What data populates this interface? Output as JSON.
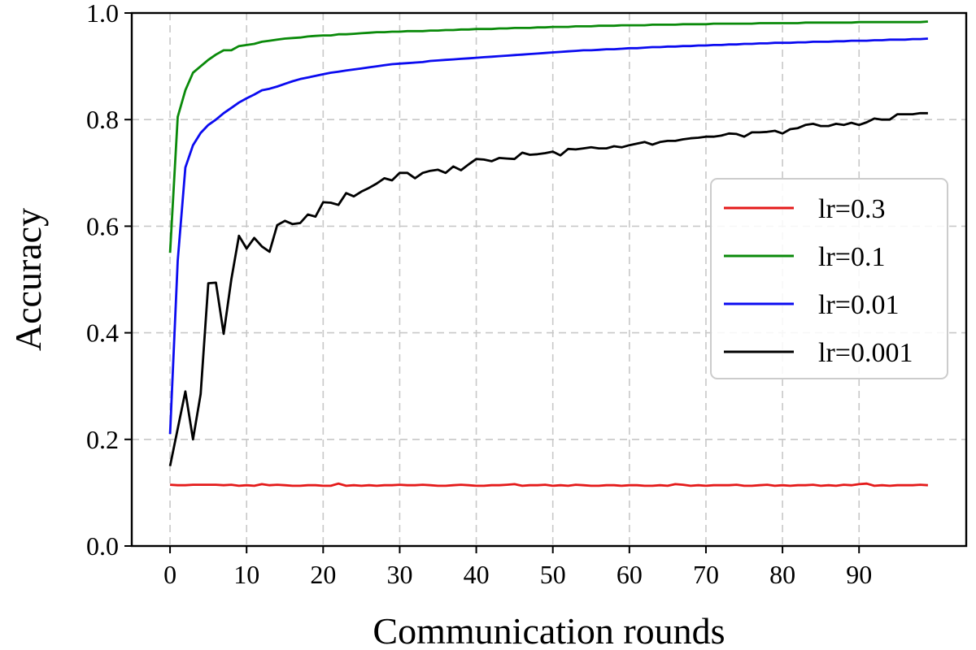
{
  "chart_data": {
    "type": "line",
    "title": "",
    "xlabel": "Communication rounds",
    "ylabel": "Accuracy",
    "xlim": [
      -5,
      104
    ],
    "ylim": [
      0.0,
      1.0
    ],
    "xticks": [
      0,
      10,
      20,
      30,
      40,
      50,
      60,
      70,
      80,
      90
    ],
    "xtick_labels": [
      "0",
      "10",
      "20",
      "30",
      "40",
      "50",
      "60",
      "70",
      "80",
      "90"
    ],
    "yticks": [
      0.0,
      0.2,
      0.4,
      0.6,
      0.8,
      1.0
    ],
    "ytick_labels": [
      "0.0",
      "0.2",
      "0.4",
      "0.6",
      "0.8",
      "1.0"
    ],
    "grid": true,
    "legend_position": "center-right",
    "x": [
      0,
      1,
      2,
      3,
      4,
      5,
      6,
      7,
      8,
      9,
      10,
      11,
      12,
      13,
      14,
      15,
      16,
      17,
      18,
      19,
      20,
      21,
      22,
      23,
      24,
      25,
      26,
      27,
      28,
      29,
      30,
      31,
      32,
      33,
      34,
      35,
      36,
      37,
      38,
      39,
      40,
      41,
      42,
      43,
      44,
      45,
      46,
      47,
      48,
      49,
      50,
      51,
      52,
      53,
      54,
      55,
      56,
      57,
      58,
      59,
      60,
      61,
      62,
      63,
      64,
      65,
      66,
      67,
      68,
      69,
      70,
      71,
      72,
      73,
      74,
      75,
      76,
      77,
      78,
      79,
      80,
      81,
      82,
      83,
      84,
      85,
      86,
      87,
      88,
      89,
      90,
      91,
      92,
      93,
      94,
      95,
      96,
      97,
      98,
      99
    ],
    "series": [
      {
        "name": "lr=0.3",
        "color": "#e41a1a",
        "values": [
          0.115,
          0.114,
          0.114,
          0.115,
          0.115,
          0.115,
          0.115,
          0.114,
          0.115,
          0.113,
          0.114,
          0.113,
          0.116,
          0.114,
          0.115,
          0.114,
          0.113,
          0.113,
          0.114,
          0.114,
          0.113,
          0.113,
          0.117,
          0.113,
          0.114,
          0.113,
          0.114,
          0.113,
          0.114,
          0.114,
          0.115,
          0.114,
          0.114,
          0.115,
          0.114,
          0.113,
          0.113,
          0.114,
          0.115,
          0.114,
          0.113,
          0.113,
          0.114,
          0.114,
          0.115,
          0.116,
          0.113,
          0.114,
          0.114,
          0.115,
          0.113,
          0.114,
          0.113,
          0.115,
          0.114,
          0.113,
          0.113,
          0.114,
          0.114,
          0.113,
          0.114,
          0.114,
          0.113,
          0.113,
          0.114,
          0.113,
          0.116,
          0.115,
          0.113,
          0.114,
          0.113,
          0.114,
          0.114,
          0.114,
          0.115,
          0.113,
          0.113,
          0.114,
          0.115,
          0.113,
          0.114,
          0.113,
          0.114,
          0.114,
          0.115,
          0.113,
          0.114,
          0.113,
          0.115,
          0.114,
          0.116,
          0.117,
          0.113,
          0.114,
          0.113,
          0.114,
          0.114,
          0.114,
          0.115,
          0.114
        ]
      },
      {
        "name": "lr=0.1",
        "color": "#0a8a0a",
        "values": [
          0.55,
          0.805,
          0.855,
          0.888,
          0.9,
          0.912,
          0.922,
          0.93,
          0.93,
          0.938,
          0.94,
          0.942,
          0.946,
          0.948,
          0.95,
          0.952,
          0.953,
          0.954,
          0.956,
          0.957,
          0.958,
          0.958,
          0.96,
          0.96,
          0.961,
          0.962,
          0.963,
          0.964,
          0.964,
          0.965,
          0.965,
          0.966,
          0.966,
          0.966,
          0.967,
          0.967,
          0.968,
          0.968,
          0.969,
          0.969,
          0.97,
          0.97,
          0.97,
          0.971,
          0.971,
          0.972,
          0.972,
          0.972,
          0.973,
          0.973,
          0.974,
          0.974,
          0.974,
          0.975,
          0.975,
          0.975,
          0.976,
          0.976,
          0.976,
          0.977,
          0.977,
          0.977,
          0.977,
          0.978,
          0.978,
          0.978,
          0.978,
          0.979,
          0.979,
          0.979,
          0.979,
          0.98,
          0.98,
          0.98,
          0.98,
          0.98,
          0.98,
          0.981,
          0.981,
          0.981,
          0.981,
          0.981,
          0.981,
          0.982,
          0.982,
          0.982,
          0.982,
          0.982,
          0.982,
          0.982,
          0.983,
          0.983,
          0.983,
          0.983,
          0.983,
          0.983,
          0.983,
          0.983,
          0.983,
          0.984
        ]
      },
      {
        "name": "lr=0.01",
        "color": "#0b0bf0",
        "values": [
          0.21,
          0.535,
          0.71,
          0.752,
          0.775,
          0.79,
          0.8,
          0.812,
          0.822,
          0.832,
          0.84,
          0.847,
          0.855,
          0.858,
          0.862,
          0.867,
          0.872,
          0.876,
          0.879,
          0.882,
          0.885,
          0.888,
          0.89,
          0.892,
          0.894,
          0.896,
          0.898,
          0.9,
          0.902,
          0.904,
          0.905,
          0.906,
          0.907,
          0.908,
          0.91,
          0.911,
          0.912,
          0.913,
          0.914,
          0.915,
          0.916,
          0.917,
          0.918,
          0.919,
          0.92,
          0.921,
          0.922,
          0.923,
          0.924,
          0.925,
          0.926,
          0.927,
          0.928,
          0.929,
          0.93,
          0.93,
          0.931,
          0.932,
          0.932,
          0.933,
          0.934,
          0.934,
          0.935,
          0.936,
          0.936,
          0.937,
          0.937,
          0.938,
          0.938,
          0.939,
          0.939,
          0.94,
          0.94,
          0.941,
          0.941,
          0.942,
          0.942,
          0.943,
          0.943,
          0.944,
          0.944,
          0.944,
          0.945,
          0.945,
          0.946,
          0.946,
          0.946,
          0.947,
          0.947,
          0.948,
          0.948,
          0.948,
          0.949,
          0.949,
          0.95,
          0.95,
          0.95,
          0.951,
          0.951,
          0.952
        ]
      },
      {
        "name": "lr=0.001",
        "color": "#000000",
        "values": [
          0.15,
          0.22,
          0.29,
          0.2,
          0.285,
          0.493,
          0.494,
          0.398,
          0.5,
          0.582,
          0.558,
          0.578,
          0.562,
          0.552,
          0.602,
          0.61,
          0.604,
          0.606,
          0.622,
          0.618,
          0.645,
          0.644,
          0.64,
          0.662,
          0.656,
          0.665,
          0.672,
          0.68,
          0.69,
          0.686,
          0.7,
          0.7,
          0.69,
          0.7,
          0.704,
          0.706,
          0.7,
          0.712,
          0.705,
          0.716,
          0.726,
          0.725,
          0.722,
          0.728,
          0.727,
          0.726,
          0.738,
          0.734,
          0.735,
          0.737,
          0.74,
          0.733,
          0.745,
          0.744,
          0.746,
          0.748,
          0.746,
          0.746,
          0.75,
          0.748,
          0.752,
          0.755,
          0.758,
          0.753,
          0.758,
          0.76,
          0.76,
          0.763,
          0.765,
          0.766,
          0.768,
          0.768,
          0.77,
          0.774,
          0.773,
          0.768,
          0.776,
          0.776,
          0.777,
          0.779,
          0.774,
          0.782,
          0.784,
          0.79,
          0.792,
          0.788,
          0.788,
          0.792,
          0.79,
          0.794,
          0.79,
          0.795,
          0.802,
          0.8,
          0.8,
          0.81,
          0.81,
          0.81,
          0.812,
          0.812
        ]
      }
    ]
  }
}
